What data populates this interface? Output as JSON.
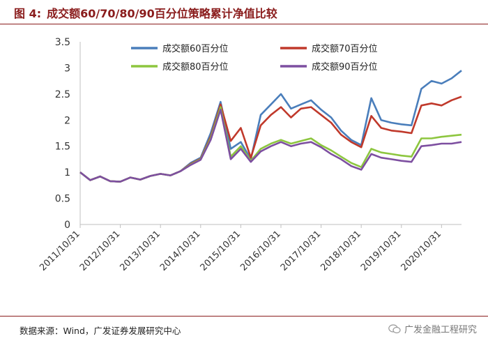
{
  "figure": {
    "label": "图 4:",
    "title": "成交额60/70/80/90百分位策略累计净值比较"
  },
  "source": "数据来源：Wind，广发证券发展研究中心",
  "watermark": "广发金融工程研究",
  "colors": {
    "brand": "#8a1c1c",
    "s60": "#4a7ebb",
    "s70": "#c0392b",
    "s80": "#8dc63f",
    "s90": "#7d4fa0",
    "axis": "#bfbfbf"
  },
  "chart_data": {
    "type": "line",
    "title": "成交额60/70/80/90百分位策略累计净值比较",
    "xlabel": "",
    "ylabel": "",
    "ylim": [
      0,
      3.5
    ],
    "yticks": [
      "0",
      "0.5",
      "1",
      "1.5",
      "2",
      "2.5",
      "3",
      "3.5"
    ],
    "x": [
      "2011/10/31",
      "2012/01/31",
      "2012/04/30",
      "2012/07/31",
      "2012/10/31",
      "2013/01/31",
      "2013/04/30",
      "2013/07/31",
      "2013/10/31",
      "2014/01/31",
      "2014/04/30",
      "2014/07/31",
      "2014/10/31",
      "2015/01/31",
      "2015/04/30",
      "2015/07/31",
      "2015/10/31",
      "2016/01/31",
      "2016/04/30",
      "2016/07/31",
      "2016/10/31",
      "2017/01/31",
      "2017/04/30",
      "2017/07/31",
      "2017/10/31",
      "2018/01/31",
      "2018/04/30",
      "2018/07/31",
      "2018/10/31",
      "2019/01/31",
      "2019/04/30",
      "2019/07/31",
      "2019/10/31",
      "2020/01/31",
      "2020/04/30",
      "2020/07/31",
      "2020/10/31",
      "2021/01/31",
      "2021/04/30"
    ],
    "xticks": [
      "2011/10/31",
      "2012/10/31",
      "2013/10/31",
      "2014/10/31",
      "2015/10/31",
      "2016/10/31",
      "2017/10/31",
      "2018/10/31",
      "2019/10/31",
      "2020/10/31"
    ],
    "grid": false,
    "legend_position": "top",
    "series": [
      {
        "name": "成交额60百分位",
        "color": "#4a7ebb",
        "values": [
          1.0,
          0.85,
          0.92,
          0.83,
          0.82,
          0.9,
          0.86,
          0.93,
          0.97,
          0.94,
          1.02,
          1.18,
          1.28,
          1.75,
          2.35,
          1.45,
          1.58,
          1.25,
          2.1,
          2.3,
          2.5,
          2.22,
          2.3,
          2.38,
          2.2,
          2.05,
          1.8,
          1.62,
          1.52,
          2.42,
          2.0,
          1.95,
          1.92,
          1.9,
          2.6,
          2.75,
          2.7,
          2.8,
          2.95
        ]
      },
      {
        "name": "成交额70百分位",
        "color": "#c0392b",
        "values": [
          1.0,
          0.85,
          0.92,
          0.83,
          0.82,
          0.9,
          0.86,
          0.93,
          0.97,
          0.94,
          1.02,
          1.16,
          1.26,
          1.68,
          2.3,
          1.6,
          1.85,
          1.28,
          1.9,
          2.1,
          2.25,
          2.05,
          2.22,
          2.25,
          2.1,
          1.95,
          1.72,
          1.58,
          1.48,
          2.08,
          1.85,
          1.8,
          1.78,
          1.75,
          2.28,
          2.32,
          2.28,
          2.38,
          2.45
        ]
      },
      {
        "name": "成交额80百分位",
        "color": "#8dc63f",
        "values": [
          1.0,
          0.85,
          0.92,
          0.83,
          0.82,
          0.9,
          0.86,
          0.93,
          0.97,
          0.94,
          1.02,
          1.15,
          1.25,
          1.65,
          2.25,
          1.3,
          1.5,
          1.22,
          1.45,
          1.55,
          1.62,
          1.55,
          1.6,
          1.65,
          1.52,
          1.42,
          1.3,
          1.18,
          1.1,
          1.45,
          1.38,
          1.35,
          1.32,
          1.3,
          1.65,
          1.65,
          1.68,
          1.7,
          1.72
        ]
      },
      {
        "name": "成交额90百分位",
        "color": "#7d4fa0",
        "values": [
          1.0,
          0.85,
          0.92,
          0.83,
          0.82,
          0.9,
          0.86,
          0.93,
          0.97,
          0.94,
          1.02,
          1.14,
          1.24,
          1.62,
          2.2,
          1.25,
          1.45,
          1.2,
          1.4,
          1.5,
          1.58,
          1.5,
          1.55,
          1.58,
          1.48,
          1.35,
          1.25,
          1.12,
          1.05,
          1.35,
          1.28,
          1.25,
          1.22,
          1.2,
          1.5,
          1.52,
          1.55,
          1.55,
          1.58
        ]
      }
    ]
  }
}
